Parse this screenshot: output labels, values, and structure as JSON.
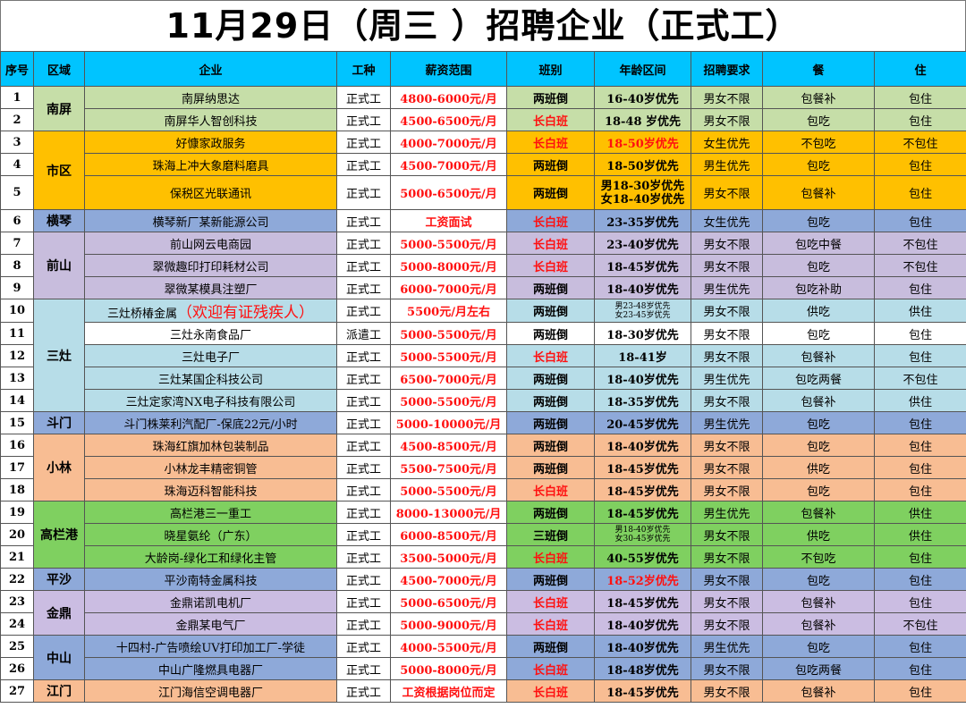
{
  "title": "11月29日（周三 ）招聘企业（正式工）",
  "headers": [
    "序号",
    "区域",
    "企业",
    "工种",
    "薪资范围",
    "班别",
    "年龄区间",
    "招聘要求",
    "餐",
    "住"
  ],
  "rows": [
    {
      "no": "1",
      "region": "南屏",
      "company": "南屏纳思达",
      "type": "正式工",
      "salary": "4800-6000元/月",
      "shift": "两班倒",
      "age": "16-40岁优先",
      "req": "男女不限",
      "meal": "包餐补",
      "live": "包住"
    },
    {
      "no": "2",
      "company": "南屏华人智创科技",
      "type": "正式工",
      "salary": "4500-6500元/月",
      "shift": "长白班",
      "age": "18-48 岁优先",
      "req": "男女不限",
      "meal": "包吃",
      "live": "包住"
    },
    {
      "no": "3",
      "region": "市区",
      "company": "好慷家政服务",
      "type": "正式工",
      "salary": "4000-7000元/月",
      "shift": "长白班",
      "age": "18-50岁优先",
      "req": "女生优先",
      "meal": "不包吃",
      "live": "不包住"
    },
    {
      "no": "4",
      "company": "珠海上冲大象磨料磨具",
      "type": "正式工",
      "salary": "4500-7000元/月",
      "shift": "两班倒",
      "age": "18-50岁优先",
      "req": "男生优先",
      "meal": "包吃",
      "live": "包住"
    },
    {
      "no": "5",
      "company": "保税区光联通讯",
      "type": "正式工",
      "salary": "5000-6500元/月",
      "shift": "两班倒",
      "age": "男18-30岁优先",
      "age2": "女18-40岁优先",
      "req": "男女不限",
      "meal": "包餐补",
      "live": "包住"
    },
    {
      "no": "6",
      "region": "横琴",
      "company": "横琴新厂某新能源公司",
      "type": "正式工",
      "salary": "工资面试",
      "shift": "长白班",
      "age": "23-35岁优先",
      "req": "女生优先",
      "meal": "包吃",
      "live": "包住"
    },
    {
      "no": "7",
      "region": "前山",
      "company": "前山网云电商园",
      "type": "正式工",
      "salary": "5000-5500元/月",
      "shift": "长白班",
      "age": "23-40岁优先",
      "req": "男女不限",
      "meal": "包吃中餐",
      "live": "不包住"
    },
    {
      "no": "8",
      "company": "翠微趣印打印耗材公司",
      "type": "正式工",
      "salary": "5000-8000元/月",
      "shift": "长白班",
      "age": "18-45岁优先",
      "req": "男女不限",
      "meal": "包吃",
      "live": "不包住"
    },
    {
      "no": "9",
      "company": "翠微某模具注塑厂",
      "type": "正式工",
      "salary": "6000-7000元/月",
      "shift": "两班倒",
      "age": "18-40岁优先",
      "req": "男生优先",
      "meal": "包吃补助",
      "live": "包住"
    },
    {
      "no": "10",
      "region": "三灶",
      "company": "三灶桥椿金属",
      "company_note": "（欢迎有证残疾人）",
      "type": "正式工",
      "salary": "5500元/月左右",
      "shift": "两班倒",
      "age": "男23-48岁优先",
      "age2": "女23-45岁优先",
      "req": "男女不限",
      "meal": "供吃",
      "live": "供住"
    },
    {
      "no": "11",
      "company": "三灶永南食品厂",
      "type": "派遣工",
      "salary": "5000-5500元/月",
      "shift": "两班倒",
      "age": "18-30岁优先",
      "req": "男女不限",
      "meal": "包吃",
      "live": "包住"
    },
    {
      "no": "12",
      "company": "三灶电子厂",
      "type": "正式工",
      "salary": "5000-5500元/月",
      "shift": "长白班",
      "age": "18-41岁",
      "req": "男女不限",
      "meal": "包餐补",
      "live": "包住"
    },
    {
      "no": "13",
      "company": "三灶某国企科技公司",
      "type": "正式工",
      "salary": "6500-7000元/月",
      "shift": "两班倒",
      "age": "18-40岁优先",
      "req": "男生优先",
      "meal": "包吃两餐",
      "live": "不包住"
    },
    {
      "no": "14",
      "company": "三灶定家湾NX电子科技有限公司",
      "type": "正式工",
      "salary": "5000-5500元/月",
      "shift": "两班倒",
      "age": "18-35岁优先",
      "req": "男女不限",
      "meal": "包餐补",
      "live": "供住"
    },
    {
      "no": "15",
      "region": "斗门",
      "company": "斗门株莱利汽配厂-保底22元/小时",
      "type": "正式工",
      "salary": "5000-10000元/月",
      "shift": "两班倒",
      "age": "20-45岁优先",
      "req": "男生优先",
      "meal": "包吃",
      "live": "包住"
    },
    {
      "no": "16",
      "region": "小林",
      "company": "珠海红旗加林包装制品",
      "type": "正式工",
      "salary": "4500-8500元/月",
      "shift": "两班倒",
      "age": "18-40岁优先",
      "req": "男女不限",
      "meal": "包吃",
      "live": "包住"
    },
    {
      "no": "17",
      "company": "小林龙丰精密铜管",
      "type": "正式工",
      "salary": "5500-7500元/月",
      "shift": "两班倒",
      "age": "18-45岁优先",
      "req": "男女不限",
      "meal": "供吃",
      "live": "包住"
    },
    {
      "no": "18",
      "company": "珠海迈科智能科技",
      "type": "正式工",
      "salary": "5000-5500元/月",
      "shift": "长白班",
      "age": "18-45岁优先",
      "req": "男女不限",
      "meal": "包吃",
      "live": "包住"
    },
    {
      "no": "19",
      "region": "高栏港",
      "company": "高栏港三一重工",
      "type": "正式工",
      "salary": "8000-13000元/月",
      "shift": "两班倒",
      "age": "18-45岁优先",
      "req": "男生优先",
      "meal": "包餐补",
      "live": "供住"
    },
    {
      "no": "20",
      "company": "晓星氨纶（广东）",
      "type": "正式工",
      "salary": "6000-8500元/月",
      "shift": "三班倒",
      "age": "男18-40岁优先",
      "age2": "女30-45岁优先",
      "req": "男女不限",
      "meal": "供吃",
      "live": "供住"
    },
    {
      "no": "21",
      "company": "大龄岗-绿化工和绿化主管",
      "type": "正式工",
      "salary": "3500-5000元/月",
      "shift": "长白班",
      "age": "40-55岁优先",
      "req": "男女不限",
      "meal": "不包吃",
      "live": "包住"
    },
    {
      "no": "22",
      "region": "平沙",
      "company": "平沙南特金属科技",
      "type": "正式工",
      "salary": "4500-7000元/月",
      "shift": "两班倒",
      "age": "18-52岁优先",
      "req": "男女不限",
      "meal": "包吃",
      "live": "包住"
    },
    {
      "no": "23",
      "region": "金鼎",
      "company": "金鼎诺凯电机厂",
      "type": "正式工",
      "salary": "5000-6500元/月",
      "shift": "长白班",
      "age": "18-45岁优先",
      "req": "男女不限",
      "meal": "包餐补",
      "live": "包住"
    },
    {
      "no": "24",
      "company": "金鼎某电气厂",
      "type": "正式工",
      "salary": "5000-9000元/月",
      "shift": "长白班",
      "age": "18-40岁优先",
      "req": "男女不限",
      "meal": "包餐补",
      "live": "不包住"
    },
    {
      "no": "25",
      "region": "中山",
      "company": "十四村-广告喷绘UV打印加工厂-学徒",
      "type": "正式工",
      "salary": "4000-5500元/月",
      "shift": "两班倒",
      "age": "18-40岁优先",
      "req": "男生优先",
      "meal": "包吃",
      "live": "包住"
    },
    {
      "no": "26",
      "company": "中山广隆燃具电器厂",
      "type": "正式工",
      "salary": "5000-8000元/月",
      "shift": "长白班",
      "age": "18-48岁优先",
      "req": "男女不限",
      "meal": "包吃两餐",
      "live": "包住"
    },
    {
      "no": "27",
      "region": "江门",
      "company": "江门海信空调电器厂",
      "type": "正式工",
      "salary": "工资根据岗位而定",
      "shift": "长白班",
      "age": "18-45岁优先",
      "req": "男女不限",
      "meal": "包餐补",
      "live": "包住"
    }
  ],
  "colors": {
    "header": "#00c4ff",
    "green": "#c6dea8",
    "orange": "#ffc000",
    "blue": "#8ea9d9",
    "purple": "#c8bddd",
    "cyan": "#b7dde8",
    "peach": "#f8bd93",
    "lime": "#7fd060",
    "red_text": "#ff1010"
  }
}
